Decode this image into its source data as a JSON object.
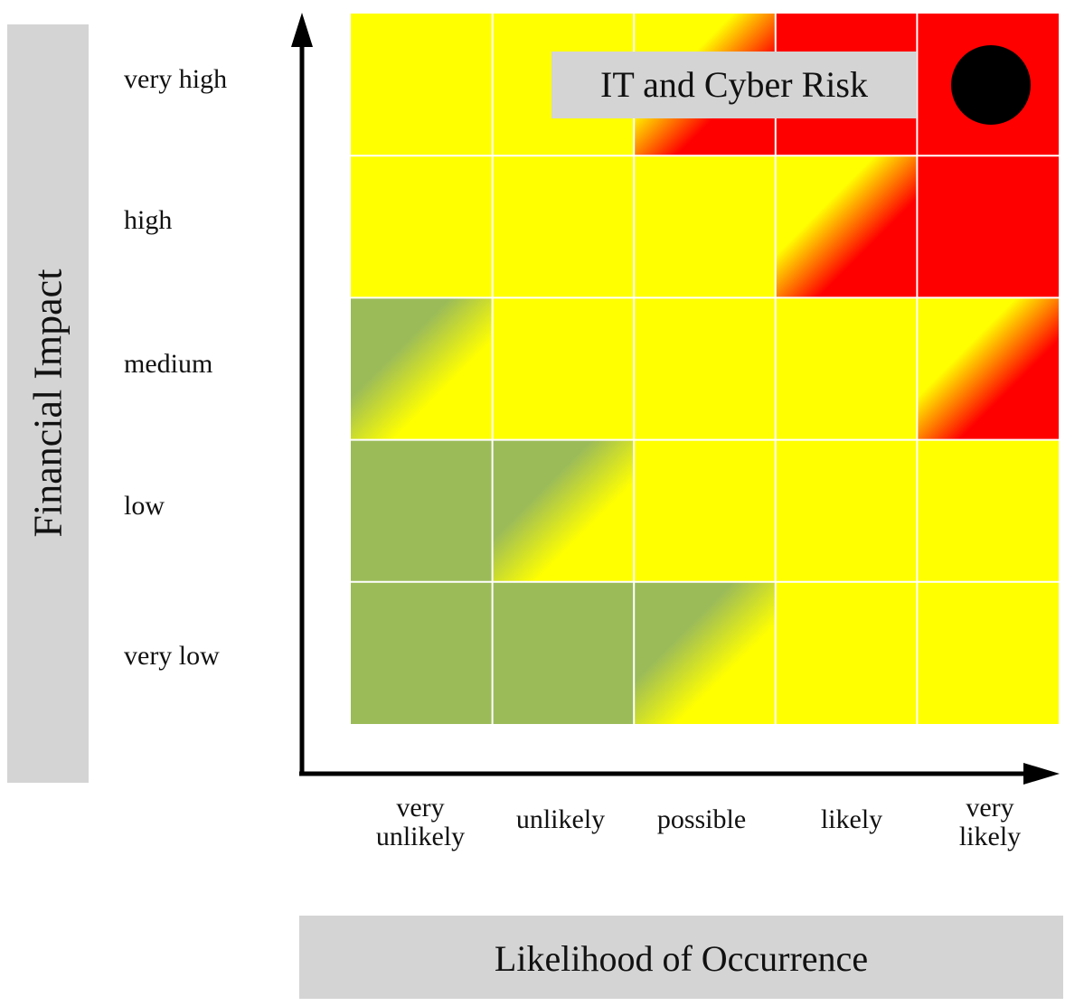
{
  "chart_data": {
    "type": "heatmap",
    "title": "",
    "xlabel": "Likelihood of Occurrence",
    "ylabel": "Financial Impact",
    "x_categories": [
      {
        "line1": "very",
        "line2": "unlikely"
      },
      {
        "line1": "unlikely",
        "line2": ""
      },
      {
        "line1": "possible",
        "line2": ""
      },
      {
        "line1": "likely",
        "line2": ""
      },
      {
        "line1": "very",
        "line2": "likely"
      }
    ],
    "y_categories": [
      "very high",
      "high",
      "medium",
      "low",
      "very low"
    ],
    "cells": [
      [
        "yellow",
        "yellow",
        "yellow-red",
        "red",
        "red"
      ],
      [
        "yellow",
        "yellow",
        "yellow",
        "yellow-red",
        "red"
      ],
      [
        "green-yellow",
        "yellow",
        "yellow",
        "yellow",
        "yellow-red"
      ],
      [
        "green",
        "green-yellow",
        "yellow",
        "yellow",
        "yellow"
      ],
      [
        "green",
        "green",
        "green-yellow",
        "yellow",
        "yellow"
      ]
    ],
    "colors": {
      "green": "#9bbb59",
      "yellow": "#ffff00",
      "red": "#ff0000",
      "grid": "#ffffff"
    },
    "marker": {
      "label": "IT and Cyber Risk",
      "x": "very likely",
      "y": "very high",
      "color": "#000000"
    }
  }
}
